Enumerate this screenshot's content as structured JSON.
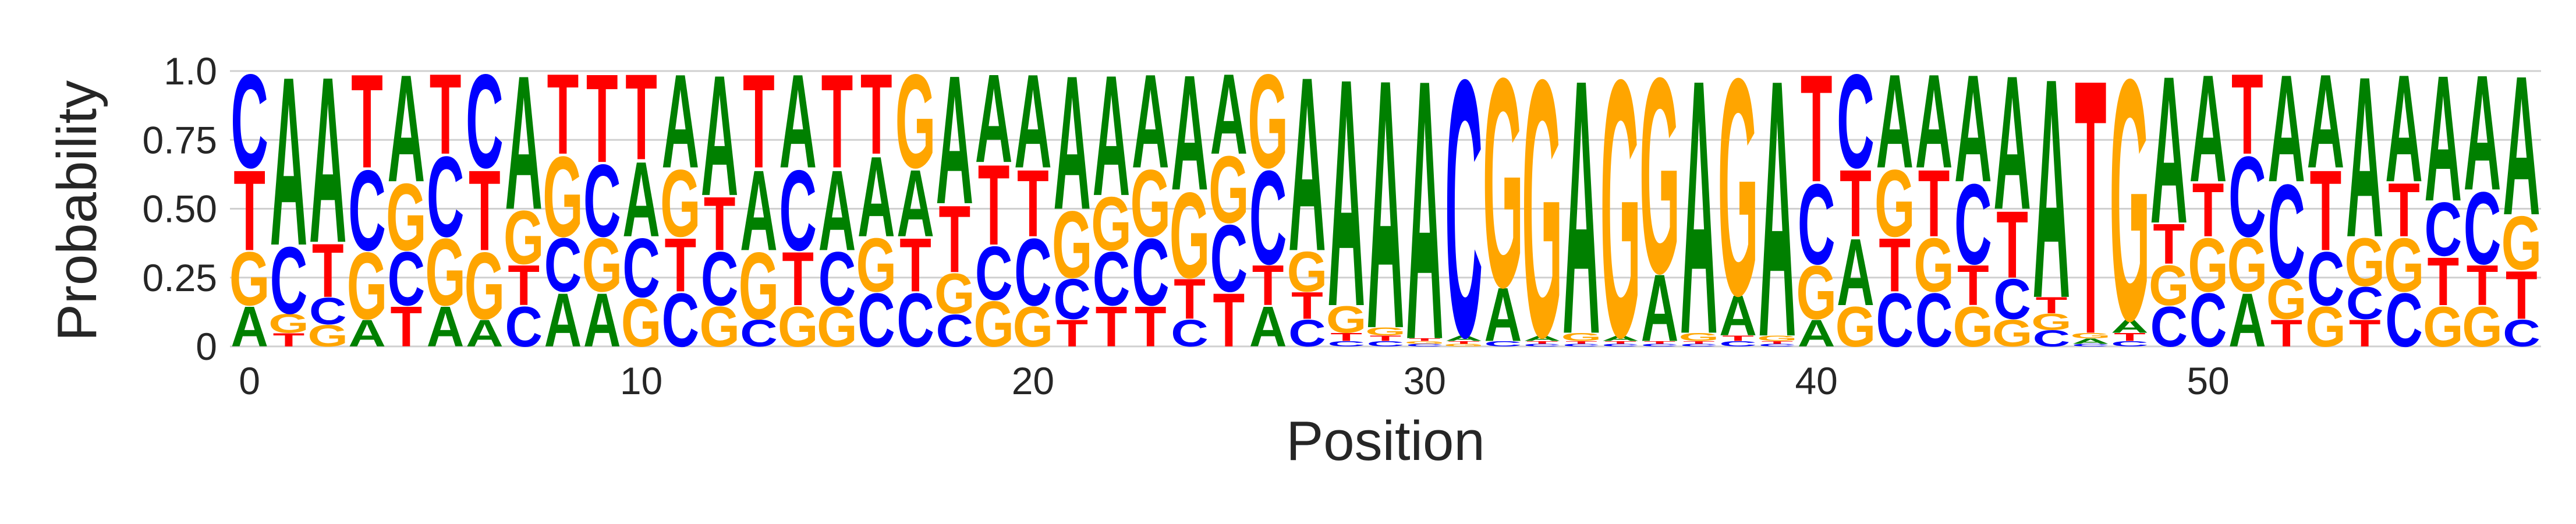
{
  "chart_data": {
    "type": "sequence-logo",
    "title": "",
    "xlabel": "Position",
    "ylabel": "Probability",
    "ylim": [
      0,
      1
    ],
    "xlim": [
      -0.5,
      58.5
    ],
    "yticks": [
      "0",
      "0.25",
      "0.50",
      "0.75",
      "1.0"
    ],
    "ytick_values": [
      0,
      0.25,
      0.5,
      0.75,
      1.0
    ],
    "xticks": [
      "0",
      "10",
      "20",
      "30",
      "40",
      "50"
    ],
    "xtick_values": [
      0,
      10,
      20,
      30,
      40,
      50
    ],
    "grid": "horizontal",
    "colors": {
      "A": "#008000",
      "C": "#0000ff",
      "G": "#ffa500",
      "T": "#ff0000"
    },
    "positions": [
      {
        "A": 0.15,
        "C": 0.35,
        "G": 0.2,
        "T": 0.3
      },
      {
        "A": 0.63,
        "C": 0.25,
        "G": 0.07,
        "T": 0.05
      },
      {
        "A": 0.62,
        "C": 0.1,
        "G": 0.08,
        "T": 0.2
      },
      {
        "A": 0.1,
        "C": 0.3,
        "G": 0.25,
        "T": 0.35
      },
      {
        "A": 0.4,
        "C": 0.2,
        "G": 0.25,
        "T": 0.15
      },
      {
        "A": 0.15,
        "C": 0.3,
        "G": 0.25,
        "T": 0.3
      },
      {
        "A": 0.1,
        "C": 0.35,
        "G": 0.25,
        "T": 0.3
      },
      {
        "A": 0.5,
        "C": 0.15,
        "G": 0.2,
        "T": 0.15
      },
      {
        "A": 0.2,
        "C": 0.2,
        "G": 0.3,
        "T": 0.3
      },
      {
        "A": 0.2,
        "C": 0.27,
        "G": 0.2,
        "T": 0.33
      },
      {
        "A": 0.28,
        "C": 0.22,
        "G": 0.18,
        "T": 0.32
      },
      {
        "A": 0.35,
        "C": 0.2,
        "G": 0.25,
        "T": 0.2
      },
      {
        "A": 0.45,
        "C": 0.2,
        "G": 0.15,
        "T": 0.2
      },
      {
        "A": 0.3,
        "C": 0.1,
        "G": 0.25,
        "T": 0.35
      },
      {
        "A": 0.35,
        "C": 0.3,
        "G": 0.15,
        "T": 0.2
      },
      {
        "A": 0.3,
        "C": 0.2,
        "G": 0.15,
        "T": 0.35
      },
      {
        "A": 0.3,
        "C": 0.2,
        "G": 0.2,
        "T": 0.3
      },
      {
        "A": 0.25,
        "C": 0.2,
        "G": 0.35,
        "T": 0.2
      },
      {
        "A": 0.48,
        "C": 0.12,
        "G": 0.15,
        "T": 0.25
      },
      {
        "A": 0.33,
        "C": 0.2,
        "G": 0.17,
        "T": 0.3
      },
      {
        "A": 0.35,
        "C": 0.25,
        "G": 0.15,
        "T": 0.25
      },
      {
        "A": 0.5,
        "C": 0.15,
        "G": 0.25,
        "T": 0.1
      },
      {
        "A": 0.45,
        "C": 0.2,
        "G": 0.2,
        "T": 0.15
      },
      {
        "A": 0.35,
        "C": 0.25,
        "G": 0.25,
        "T": 0.15
      },
      {
        "A": 0.43,
        "C": 0.1,
        "G": 0.32,
        "T": 0.15
      },
      {
        "A": 0.3,
        "C": 0.25,
        "G": 0.25,
        "T": 0.2
      },
      {
        "A": 0.15,
        "C": 0.35,
        "G": 0.35,
        "T": 0.15
      },
      {
        "A": 0.65,
        "C": 0.1,
        "G": 0.15,
        "T": 0.1
      },
      {
        "A": 0.85,
        "C": 0.02,
        "G": 0.1,
        "T": 0.03
      },
      {
        "A": 0.93,
        "C": 0.02,
        "G": 0.03,
        "T": 0.02
      },
      {
        "A": 0.97,
        "C": 0.01,
        "G": 0.01,
        "T": 0.01
      },
      {
        "A": 0.02,
        "C": 0.96,
        "G": 0.01,
        "T": 0.01
      },
      {
        "A": 0.2,
        "C": 0.02,
        "G": 0.78,
        "T": 0.0
      },
      {
        "A": 0.02,
        "C": 0.01,
        "G": 0.96,
        "T": 0.01
      },
      {
        "A": 0.95,
        "C": 0.01,
        "G": 0.03,
        "T": 0.01
      },
      {
        "A": 0.02,
        "C": 0.01,
        "G": 0.96,
        "T": 0.01
      },
      {
        "A": 0.25,
        "C": 0.01,
        "G": 0.73,
        "T": 0.01
      },
      {
        "A": 0.95,
        "C": 0.01,
        "G": 0.03,
        "T": 0.01
      },
      {
        "A": 0.15,
        "C": 0.02,
        "G": 0.81,
        "T": 0.02
      },
      {
        "A": 0.96,
        "C": 0.01,
        "G": 0.02,
        "T": 0.01
      },
      {
        "A": 0.1,
        "C": 0.3,
        "G": 0.2,
        "T": 0.4
      },
      {
        "A": 0.25,
        "C": 0.35,
        "G": 0.15,
        "T": 0.25
      },
      {
        "A": 0.35,
        "C": 0.2,
        "G": 0.25,
        "T": 0.2
      },
      {
        "A": 0.35,
        "C": 0.2,
        "G": 0.2,
        "T": 0.25
      },
      {
        "A": 0.4,
        "C": 0.3,
        "G": 0.15,
        "T": 0.15
      },
      {
        "A": 0.5,
        "C": 0.15,
        "G": 0.1,
        "T": 0.25
      },
      {
        "A": 0.82,
        "C": 0.06,
        "G": 0.06,
        "T": 0.06
      },
      {
        "A": 0.02,
        "C": 0.01,
        "G": 0.02,
        "T": 0.95
      },
      {
        "A": 0.05,
        "C": 0.02,
        "G": 0.9,
        "T": 0.03
      },
      {
        "A": 0.55,
        "C": 0.15,
        "G": 0.15,
        "T": 0.15
      },
      {
        "A": 0.4,
        "C": 0.2,
        "G": 0.2,
        "T": 0.2
      },
      {
        "A": 0.2,
        "C": 0.3,
        "G": 0.2,
        "T": 0.3
      },
      {
        "A": 0.4,
        "C": 0.35,
        "G": 0.15,
        "T": 0.1
      },
      {
        "A": 0.35,
        "C": 0.2,
        "G": 0.15,
        "T": 0.3
      },
      {
        "A": 0.6,
        "C": 0.12,
        "G": 0.18,
        "T": 0.1
      },
      {
        "A": 0.4,
        "C": 0.2,
        "G": 0.2,
        "T": 0.2
      },
      {
        "A": 0.47,
        "C": 0.2,
        "G": 0.15,
        "T": 0.18
      },
      {
        "A": 0.43,
        "C": 0.27,
        "G": 0.15,
        "T": 0.15
      },
      {
        "A": 0.52,
        "C": 0.1,
        "G": 0.2,
        "T": 0.18
      }
    ]
  }
}
